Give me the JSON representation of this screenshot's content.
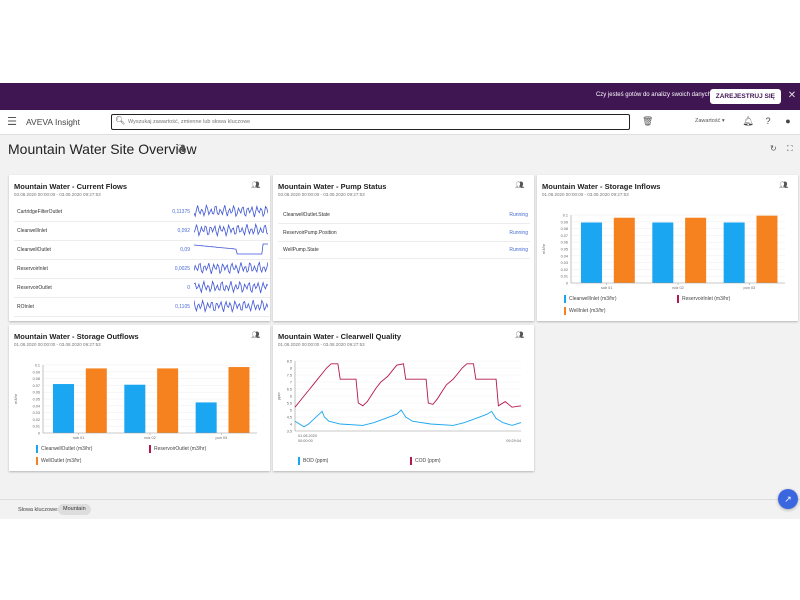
{
  "banner": {
    "text": "Czy jesteś gotów do analizy swoich danych ?",
    "button": "ZAREJESTRUJ SIĘ",
    "close": "✕"
  },
  "topbar": {
    "app_title": "AVEVA Insight",
    "search_placeholder": "Wyszukaj zawartość, zmienne lub słowa kluczowe",
    "dropdown_label": "Zawartość",
    "icons": [
      "menu-icon",
      "search-icon",
      "trash-icon",
      "bell-icon",
      "help-icon",
      "account-icon"
    ]
  },
  "page": {
    "title": "Mountain Water Site Overview"
  },
  "cards": {
    "flows": {
      "title": "Mountain Water - Current Flows",
      "range": "03.08.2020 00:00:00 - 03.08.2020 09:27:53",
      "rows": [
        {
          "label": "CartridgeFilterOutlet",
          "value": "0,11375"
        },
        {
          "label": "ClearwellInlet",
          "value": "0,092"
        },
        {
          "label": "ClearwellOutlet",
          "value": "0,09"
        },
        {
          "label": "ReservoirInlet",
          "value": "0,0025"
        },
        {
          "label": "ReservoirOutlet",
          "value": "0"
        },
        {
          "label": "ROInlet",
          "value": "0,1105"
        }
      ]
    },
    "pump": {
      "title": "Mountain Water - Pump Status",
      "range": "03.08.2020 00:00:00 - 03.08.2020 09:27:53",
      "rows": [
        {
          "label": "ClearwellOutlet.State",
          "status": "Running"
        },
        {
          "label": "ReservoirPump.Position",
          "status": "Running"
        },
        {
          "label": "WellPump.State",
          "status": "Running"
        }
      ]
    },
    "inflows": {
      "title": "Mountain Water - Storage Inflows",
      "range": "01.08.2020 00:00:00 - 03.08.2020 09:27:53"
    },
    "outflows": {
      "title": "Mountain Water - Storage Outflows",
      "range": "01.08.2020 00:00:00 - 03.08.2020 09:27:53"
    },
    "quality": {
      "title": "Mountain Water - Clearwell Quality",
      "range": "01.08.2020 00:00:00 - 03.08.2020 09:27:53"
    }
  },
  "chart_data": [
    {
      "id": "inflows",
      "type": "bar",
      "ylabel": "m3/hr",
      "yticks": [
        0,
        0.01,
        0.02,
        0.03,
        0.04,
        0.05,
        0.06,
        0.07,
        0.08,
        0.09,
        0.1
      ],
      "ylim": [
        0,
        0.1
      ],
      "categories": [
        "sob 01",
        "ndz 02",
        "pon 03"
      ],
      "series": [
        {
          "name": "ClearwellInlet (m3/hr)",
          "color": "#1aa6f0",
          "values": [
            0.089,
            0.089,
            0.089
          ]
        },
        {
          "name": "ReservoirInlet (m3/hr)",
          "color": "#b5174a",
          "values": [
            0,
            0,
            0
          ]
        },
        {
          "name": "WellInlet (m3/hr)",
          "color": "#f5821f",
          "values": [
            0.096,
            0.096,
            0.099
          ]
        }
      ]
    },
    {
      "id": "outflows",
      "type": "bar",
      "ylabel": "m3/hr",
      "yticks": [
        0,
        0.01,
        0.02,
        0.03,
        0.04,
        0.05,
        0.06,
        0.07,
        0.08,
        0.09,
        0.1
      ],
      "ylim": [
        0,
        0.1
      ],
      "categories": [
        "sob 01",
        "ndz 02",
        "pon 03"
      ],
      "series": [
        {
          "name": "ClearwellOutlet (m3/hr)",
          "color": "#1aa6f0",
          "values": [
            0.072,
            0.071,
            0.045
          ]
        },
        {
          "name": "ReservoirOutlet (m3/hr)",
          "color": "#b5174a",
          "values": [
            0,
            0,
            0
          ]
        },
        {
          "name": "WellOutlet (m3/hr)",
          "color": "#f5821f",
          "values": [
            0.095,
            0.095,
            0.097
          ]
        }
      ]
    },
    {
      "id": "quality",
      "type": "line",
      "ylabel": "ppm",
      "yticks": [
        3.5,
        4,
        4.5,
        5,
        5.5,
        6,
        6.5,
        7,
        7.5,
        8,
        8.5
      ],
      "ylim": [
        3.5,
        8.5
      ],
      "xticks": [
        "00:00:00",
        "09:29:04"
      ],
      "xlabels_top": [
        "01.08.2020"
      ],
      "series": [
        {
          "name": "BOD (ppm)",
          "color": "#1aa6f0",
          "points": [
            [
              0,
              4.2
            ],
            [
              0.02,
              4.0
            ],
            [
              0.04,
              3.8
            ],
            [
              0.06,
              4.0
            ],
            [
              0.08,
              4.3
            ],
            [
              0.1,
              4.6
            ],
            [
              0.12,
              4.9
            ],
            [
              0.13,
              4.5
            ],
            [
              0.15,
              4.2
            ],
            [
              0.2,
              4.0
            ],
            [
              0.3,
              3.9
            ],
            [
              0.35,
              4.1
            ],
            [
              0.4,
              4.4
            ],
            [
              0.45,
              4.7
            ],
            [
              0.47,
              5.0
            ],
            [
              0.49,
              4.5
            ],
            [
              0.52,
              4.2
            ],
            [
              0.6,
              4.0
            ],
            [
              0.7,
              3.9
            ],
            [
              0.75,
              4.1
            ],
            [
              0.8,
              4.4
            ],
            [
              0.85,
              4.7
            ],
            [
              0.87,
              4.9
            ],
            [
              0.89,
              4.4
            ],
            [
              0.92,
              4.1
            ],
            [
              0.96,
              3.9
            ],
            [
              1.0,
              4.1
            ]
          ]
        },
        {
          "name": "COD (ppm)",
          "color": "#b5174a",
          "points": [
            [
              0,
              5.2
            ],
            [
              0.02,
              5.6
            ],
            [
              0.04,
              6.0
            ],
            [
              0.06,
              6.4
            ],
            [
              0.08,
              6.8
            ],
            [
              0.1,
              7.2
            ],
            [
              0.12,
              7.6
            ],
            [
              0.14,
              8.0
            ],
            [
              0.16,
              8.3
            ],
            [
              0.19,
              8.3
            ],
            [
              0.2,
              7.2
            ],
            [
              0.27,
              7.2
            ],
            [
              0.28,
              5.5
            ],
            [
              0.3,
              5.3
            ],
            [
              0.32,
              5.6
            ],
            [
              0.34,
              6.1
            ],
            [
              0.36,
              6.6
            ],
            [
              0.38,
              7.0
            ],
            [
              0.41,
              7.4
            ],
            [
              0.43,
              7.8
            ],
            [
              0.45,
              8.2
            ],
            [
              0.48,
              8.3
            ],
            [
              0.49,
              7.2
            ],
            [
              0.58,
              7.2
            ],
            [
              0.59,
              5.5
            ],
            [
              0.61,
              5.4
            ],
            [
              0.63,
              5.8
            ],
            [
              0.65,
              6.3
            ],
            [
              0.67,
              6.8
            ],
            [
              0.7,
              7.2
            ],
            [
              0.72,
              7.6
            ],
            [
              0.74,
              8.0
            ],
            [
              0.76,
              8.3
            ],
            [
              0.79,
              8.3
            ],
            [
              0.8,
              7.2
            ],
            [
              0.89,
              7.2
            ],
            [
              0.9,
              5.3
            ],
            [
              0.93,
              5.6
            ],
            [
              0.96,
              5.2
            ],
            [
              1.0,
              5.3
            ]
          ]
        }
      ]
    }
  ],
  "footer": {
    "keywords_label": "Słowa kluczowe:",
    "chip": "Mountain"
  }
}
